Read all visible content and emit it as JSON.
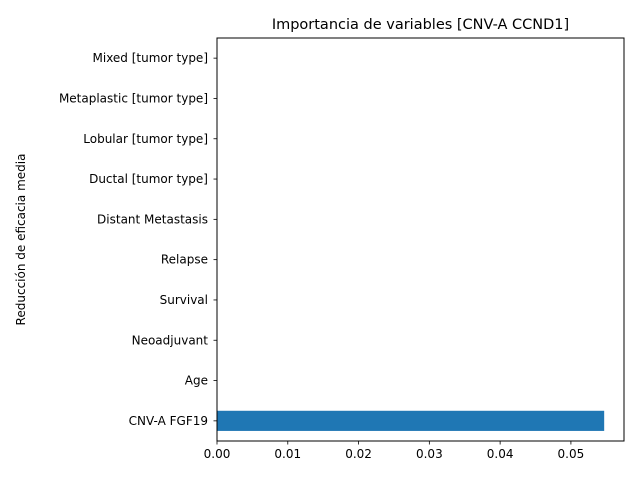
{
  "chart_data": {
    "type": "bar",
    "orientation": "horizontal",
    "title": "Importancia de variables [CNV-A CCND1]",
    "xlabel": "",
    "ylabel": "Reducción de eficacia media",
    "categories": [
      "CNV-A FGF19",
      "Age",
      "Neoadjuvant",
      "Survival",
      "Relapse",
      "Distant Metastasis",
      "Ductal [tumor type]",
      "Lobular [tumor type]",
      "Metaplastic [tumor type]",
      "Mixed [tumor type]"
    ],
    "values": [
      0.0547,
      0,
      0,
      0,
      0,
      0,
      0,
      0,
      0,
      0
    ],
    "xlim": [
      0,
      0.0575
    ],
    "xticks": [
      0.0,
      0.01,
      0.02,
      0.03,
      0.04,
      0.05
    ],
    "xtick_labels": [
      "0.00",
      "0.01",
      "0.02",
      "0.03",
      "0.04",
      "0.05"
    ],
    "bar_color": "#1f77b4",
    "grid": false,
    "legend": "none"
  }
}
